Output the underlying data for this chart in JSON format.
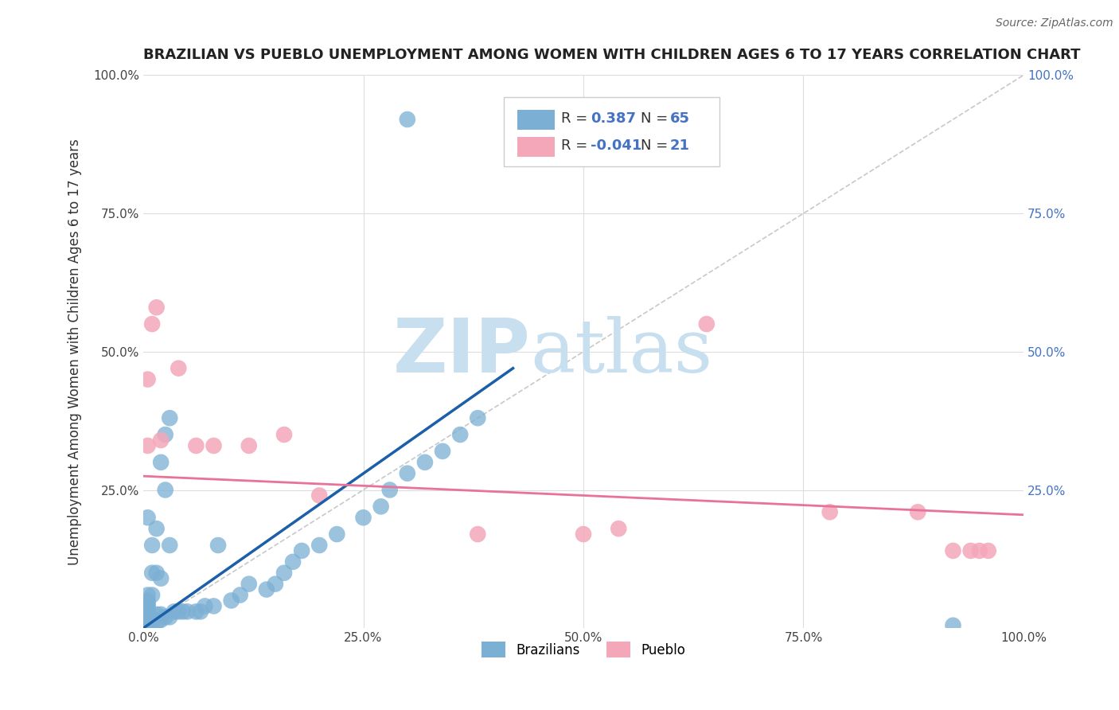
{
  "title": "BRAZILIAN VS PUEBLO UNEMPLOYMENT AMONG WOMEN WITH CHILDREN AGES 6 TO 17 YEARS CORRELATION CHART",
  "source": "Source: ZipAtlas.com",
  "ylabel": "Unemployment Among Women with Children Ages 6 to 17 years",
  "xlim": [
    0,
    1
  ],
  "ylim": [
    0,
    1
  ],
  "xticks": [
    0,
    0.25,
    0.5,
    0.75,
    1.0
  ],
  "yticks": [
    0,
    0.25,
    0.5,
    0.75,
    1.0
  ],
  "xticklabels": [
    "0.0%",
    "25.0%",
    "50.0%",
    "75.0%",
    "100.0%"
  ],
  "yticklabels_left": [
    "",
    "25.0%",
    "50.0%",
    "75.0%",
    "100.0%"
  ],
  "yticklabels_right": [
    "",
    "25.0%",
    "50.0%",
    "75.0%",
    "100.0%"
  ],
  "brazilian_color": "#7bafd4",
  "pueblo_color": "#f4a7b9",
  "brazilian_R": 0.387,
  "brazilian_N": 65,
  "pueblo_R": -0.041,
  "pueblo_N": 21,
  "watermark_zip": "ZIP",
  "watermark_atlas": "atlas",
  "watermark_color": "#c8dff0",
  "background_color": "#ffffff",
  "grid_color": "#dddddd",
  "title_fontsize": 13,
  "axis_label_fontsize": 12,
  "tick_fontsize": 11,
  "brazilian_points_x": [
    0.005,
    0.005,
    0.005,
    0.005,
    0.005,
    0.005,
    0.005,
    0.005,
    0.005,
    0.005,
    0.005,
    0.005,
    0.005,
    0.005,
    0.005,
    0.005,
    0.01,
    0.01,
    0.01,
    0.01,
    0.01,
    0.015,
    0.015,
    0.015,
    0.015,
    0.02,
    0.02,
    0.02,
    0.02,
    0.025,
    0.025,
    0.025,
    0.03,
    0.03,
    0.03,
    0.035,
    0.04,
    0.045,
    0.05,
    0.06,
    0.065,
    0.07,
    0.08,
    0.085,
    0.1,
    0.11,
    0.12,
    0.14,
    0.15,
    0.16,
    0.17,
    0.18,
    0.2,
    0.22,
    0.25,
    0.27,
    0.28,
    0.3,
    0.32,
    0.34,
    0.36,
    0.38,
    0.3,
    0.92,
    0.005
  ],
  "brazilian_points_y": [
    0.005,
    0.008,
    0.01,
    0.012,
    0.015,
    0.018,
    0.02,
    0.022,
    0.025,
    0.028,
    0.03,
    0.035,
    0.04,
    0.045,
    0.05,
    0.06,
    0.008,
    0.015,
    0.06,
    0.1,
    0.15,
    0.01,
    0.025,
    0.1,
    0.18,
    0.015,
    0.025,
    0.09,
    0.3,
    0.02,
    0.25,
    0.35,
    0.02,
    0.15,
    0.38,
    0.03,
    0.03,
    0.03,
    0.03,
    0.03,
    0.03,
    0.04,
    0.04,
    0.15,
    0.05,
    0.06,
    0.08,
    0.07,
    0.08,
    0.1,
    0.12,
    0.14,
    0.15,
    0.17,
    0.2,
    0.22,
    0.25,
    0.28,
    0.3,
    0.32,
    0.35,
    0.38,
    0.92,
    0.005,
    0.2
  ],
  "pueblo_points_x": [
    0.005,
    0.01,
    0.015,
    0.02,
    0.04,
    0.06,
    0.08,
    0.12,
    0.16,
    0.2,
    0.38,
    0.5,
    0.54,
    0.64,
    0.78,
    0.88,
    0.92,
    0.94,
    0.95,
    0.96,
    0.005
  ],
  "pueblo_points_y": [
    0.33,
    0.55,
    0.58,
    0.34,
    0.47,
    0.33,
    0.33,
    0.33,
    0.35,
    0.24,
    0.17,
    0.17,
    0.18,
    0.55,
    0.21,
    0.21,
    0.14,
    0.14,
    0.14,
    0.14,
    0.45
  ]
}
